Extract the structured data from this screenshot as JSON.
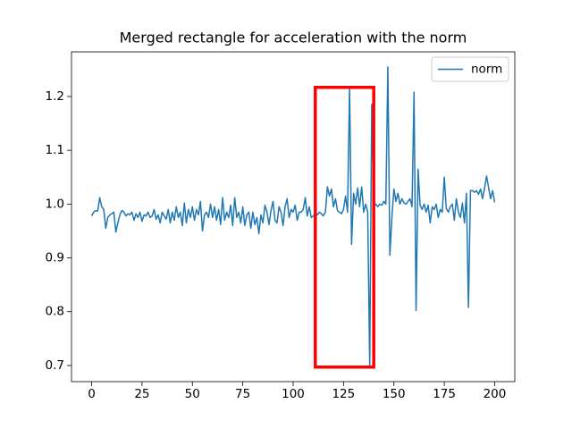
{
  "chart_data": {
    "type": "line",
    "title": "Merged rectangle for acceleration with the norm",
    "x": [
      0,
      1,
      2,
      3,
      4,
      5,
      6,
      7,
      8,
      9,
      10,
      11,
      12,
      13,
      14,
      15,
      16,
      17,
      18,
      19,
      20,
      21,
      22,
      23,
      24,
      25,
      26,
      27,
      28,
      29,
      30,
      31,
      32,
      33,
      34,
      35,
      36,
      37,
      38,
      39,
      40,
      41,
      42,
      43,
      44,
      45,
      46,
      47,
      48,
      49,
      50,
      51,
      52,
      53,
      54,
      55,
      56,
      57,
      58,
      59,
      60,
      61,
      62,
      63,
      64,
      65,
      66,
      67,
      68,
      69,
      70,
      71,
      72,
      73,
      74,
      75,
      76,
      77,
      78,
      79,
      80,
      81,
      82,
      83,
      84,
      85,
      86,
      87,
      88,
      89,
      90,
      91,
      92,
      93,
      94,
      95,
      96,
      97,
      98,
      99,
      100,
      101,
      102,
      103,
      104,
      105,
      106,
      107,
      108,
      109,
      110,
      111,
      112,
      113,
      114,
      115,
      116,
      117,
      118,
      119,
      120,
      121,
      122,
      123,
      124,
      125,
      126,
      127,
      128,
      129,
      130,
      131,
      132,
      133,
      134,
      135,
      136,
      137,
      138,
      139,
      140,
      141,
      142,
      143,
      144,
      145,
      146,
      147,
      148,
      149,
      150,
      151,
      152,
      153,
      154,
      155,
      156,
      157,
      158,
      159,
      160,
      161,
      162,
      163,
      164,
      165,
      166,
      167,
      168,
      169,
      170,
      171,
      172,
      173,
      174,
      175,
      176,
      177,
      178,
      179,
      180,
      181,
      182,
      183,
      184,
      185,
      186,
      187,
      188,
      189,
      190,
      191,
      192,
      193,
      194,
      195,
      196,
      197,
      198,
      199,
      200
    ],
    "series": [
      {
        "name": "norm",
        "color": "#1f77b4",
        "values": [
          0.978,
          0.985,
          0.988,
          0.987,
          1.012,
          0.995,
          0.99,
          0.955,
          0.975,
          0.98,
          0.982,
          0.985,
          0.948,
          0.965,
          0.98,
          0.988,
          0.985,
          0.978,
          0.982,
          0.98,
          0.985,
          0.97,
          0.982,
          0.975,
          0.985,
          0.968,
          0.98,
          0.978,
          0.985,
          0.975,
          0.978,
          0.99,
          0.972,
          0.98,
          0.965,
          0.985,
          0.978,
          0.972,
          0.99,
          0.965,
          0.985,
          0.97,
          0.995,
          0.975,
          0.985,
          0.96,
          1.002,
          0.965,
          0.99,
          0.975,
          0.995,
          0.97,
          0.99,
          0.98,
          1.005,
          0.95,
          0.98,
          0.985,
          0.975,
          1.0,
          0.975,
          0.995,
          0.97,
          0.99,
          0.962,
          1.012,
          0.97,
          0.985,
          0.975,
          0.998,
          0.96,
          1.012,
          0.975,
          0.985,
          0.965,
          0.995,
          0.96,
          0.98,
          0.985,
          0.955,
          0.985,
          0.962,
          0.975,
          0.945,
          0.98,
          0.965,
          0.998,
          0.985,
          0.962,
          0.988,
          1.005,
          0.97,
          0.965,
          0.995,
          0.985,
          0.96,
          0.995,
          1.01,
          0.975,
          0.99,
          0.985,
          0.998,
          0.97,
          0.985,
          0.985,
          0.99,
          1.012,
          0.978,
          0.995,
          0.975,
          0.978,
          0.982,
          0.98,
          0.985,
          0.982,
          0.978,
          0.985,
          1.032,
          1.015,
          1.028,
          0.995,
          1.01,
          0.988,
          0.985,
          0.982,
          0.99,
          1.015,
          0.985,
          1.215,
          0.925,
          1.02,
          1.0,
          1.03,
          0.995,
          1.032,
          0.985,
          1.0,
          0.985,
          0.698,
          1.185,
          0.995,
          1.0,
          0.995,
          1.0,
          0.998,
          1.005,
          1.0,
          1.255,
          0.905,
          0.975,
          1.028,
          1.005,
          1.02,
          1.0,
          1.01,
          1.002,
          1.0,
          1.005,
          1.01,
          0.995,
          1.208,
          0.802,
          1.065,
          0.998,
          0.99,
          1.0,
          0.985,
          0.998,
          0.965,
          0.995,
          0.99,
          1.0,
          0.975,
          0.99,
          0.985,
          1.05,
          0.992,
          0.985,
          0.995,
          1.0,
          0.97,
          1.01,
          0.985,
          0.975,
          1.002,
          0.965,
          1.02,
          0.808,
          1.025,
          1.025,
          1.022,
          1.025,
          1.018,
          1.028,
          1.01,
          1.03,
          1.052,
          1.03,
          1.01,
          1.025,
          1.003
        ]
      }
    ],
    "xlim": [
      -10,
      210
    ],
    "ylim": [
      0.67,
      1.283
    ],
    "xticks": [
      0,
      25,
      50,
      75,
      100,
      125,
      150,
      175,
      200
    ],
    "yticks": [
      0.7,
      0.8,
      0.9,
      {
        "value": 1,
        "label": "1.0"
      },
      1.1,
      1.2
    ],
    "grid": false,
    "legend": "upper right",
    "rectangle": {
      "x": [
        111,
        140
      ],
      "y": [
        0.697,
        1.217
      ],
      "color": "red"
    }
  }
}
